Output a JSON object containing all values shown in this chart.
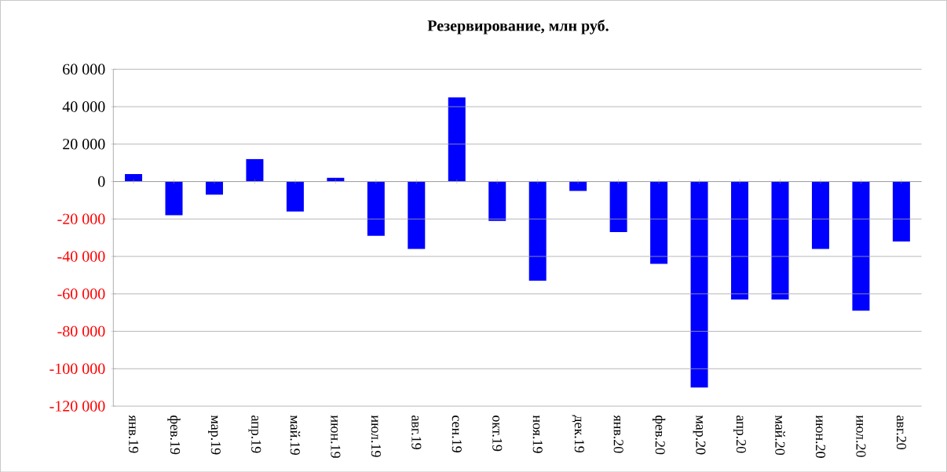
{
  "chart_data": {
    "type": "bar",
    "title": "Резервирование, млн руб.",
    "categories": [
      "янв.19",
      "фев.19",
      "мар.19",
      "апр.19",
      "май.19",
      "июн.19",
      "июл.19",
      "авг.19",
      "сен.19",
      "окт.19",
      "ноя.19",
      "дек.19",
      "янв.20",
      "фев.20",
      "мар.20",
      "апр.20",
      "май.20",
      "июн.20",
      "июл.20",
      "авг.20"
    ],
    "values": [
      4000,
      -18000,
      -7000,
      12000,
      -16000,
      2000,
      -29000,
      -36000,
      45000,
      -21000,
      -53000,
      -5000,
      -27000,
      -44000,
      -110000,
      -63000,
      -63000,
      -36000,
      -69000,
      -32000
    ],
    "color": "#0000ff",
    "ylim": [
      -120000,
      60000
    ],
    "yticks": [
      {
        "value": -120000,
        "label": "-120 000"
      },
      {
        "value": -100000,
        "label": "-100 000"
      },
      {
        "value": -80000,
        "label": "-80 000"
      },
      {
        "value": -60000,
        "label": "-60 000"
      },
      {
        "value": -40000,
        "label": "-40 000"
      },
      {
        "value": -20000,
        "label": "-20 000"
      },
      0,
      {
        "value": 20000,
        "label": "20 000"
      },
      {
        "value": 40000,
        "label": "40 000"
      },
      {
        "value": 60000,
        "label": "60 000"
      }
    ],
    "grid": "y"
  }
}
